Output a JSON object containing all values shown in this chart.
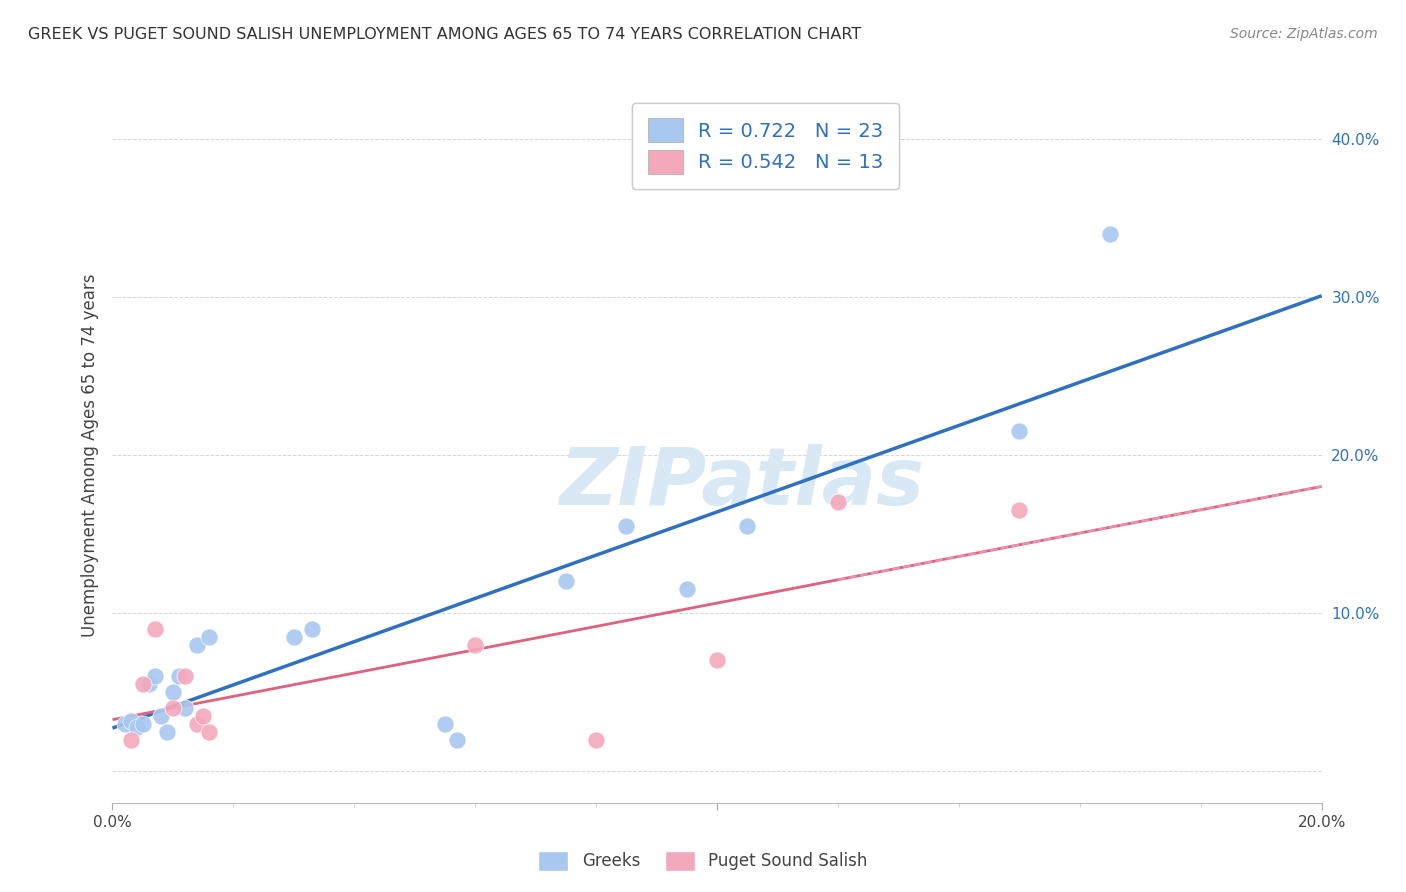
{
  "title": "GREEK VS PUGET SOUND SALISH UNEMPLOYMENT AMONG AGES 65 TO 74 YEARS CORRELATION CHART",
  "source": "Source: ZipAtlas.com",
  "ylabel": "Unemployment Among Ages 65 to 74 years",
  "xlim": [
    0.0,
    0.2
  ],
  "ylim": [
    -0.02,
    0.42
  ],
  "ytick_positions": [
    0.0,
    0.1,
    0.2,
    0.3,
    0.4
  ],
  "ytick_labels": [
    "",
    "10.0%",
    "20.0%",
    "30.0%",
    "40.0%"
  ],
  "greek_R": 0.722,
  "greek_N": 23,
  "salish_R": 0.542,
  "salish_N": 13,
  "greek_color": "#A8C8F0",
  "salish_color": "#F4A8BC",
  "greek_line_color": "#3070C0",
  "salish_line_color": "#E06080",
  "watermark_color": "#D8E8F4",
  "greek_points_x": [
    0.002,
    0.003,
    0.004,
    0.005,
    0.006,
    0.007,
    0.008,
    0.009,
    0.01,
    0.011,
    0.012,
    0.014,
    0.016,
    0.03,
    0.033,
    0.055,
    0.057,
    0.075,
    0.085,
    0.095,
    0.105,
    0.15,
    0.165
  ],
  "greek_points_y": [
    0.03,
    0.032,
    0.028,
    0.03,
    0.055,
    0.06,
    0.035,
    0.025,
    0.05,
    0.06,
    0.04,
    0.08,
    0.085,
    0.085,
    0.09,
    0.03,
    0.02,
    0.12,
    0.155,
    0.115,
    0.155,
    0.215,
    0.34
  ],
  "salish_points_x": [
    0.003,
    0.005,
    0.007,
    0.01,
    0.012,
    0.014,
    0.015,
    0.016,
    0.06,
    0.08,
    0.1,
    0.12,
    0.15
  ],
  "salish_points_y": [
    0.02,
    0.055,
    0.09,
    0.04,
    0.06,
    0.03,
    0.035,
    0.025,
    0.08,
    0.02,
    0.07,
    0.17,
    0.165
  ],
  "background_color": "#FFFFFF",
  "grid_color": "#CCCCCC",
  "title_color": "#333333",
  "legend_text_color": "#3070C0",
  "bottom_legend_labels": [
    "Greeks",
    "Puget Sound Salish"
  ]
}
